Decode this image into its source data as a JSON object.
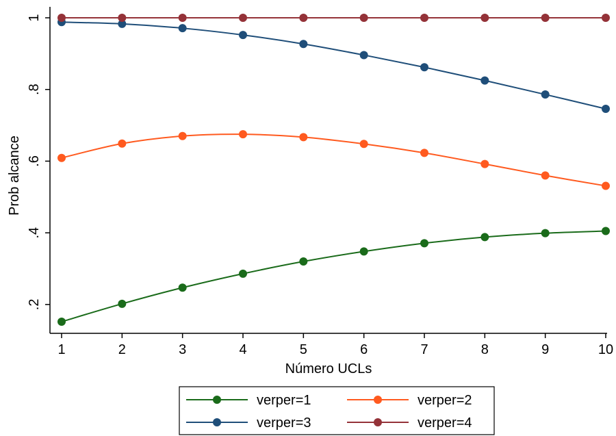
{
  "chart_data": {
    "type": "line",
    "x": [
      1,
      2,
      3,
      4,
      5,
      6,
      7,
      8,
      9,
      10
    ],
    "series": [
      {
        "name": "verper=1",
        "color": "#1a6b1a",
        "values": [
          0.152,
          0.202,
          0.247,
          0.286,
          0.32,
          0.348,
          0.371,
          0.388,
          0.399,
          0.405
        ]
      },
      {
        "name": "verper=2",
        "color": "#ff5a1f",
        "values": [
          0.609,
          0.649,
          0.67,
          0.675,
          0.667,
          0.648,
          0.623,
          0.592,
          0.56,
          0.531
        ]
      },
      {
        "name": "verper=3",
        "color": "#1f4e79",
        "values": [
          0.988,
          0.983,
          0.971,
          0.952,
          0.927,
          0.896,
          0.862,
          0.825,
          0.786,
          0.746
        ]
      },
      {
        "name": "verper=4",
        "color": "#943238",
        "values": [
          1.0,
          1.0,
          1.0,
          1.0,
          1.0,
          1.0,
          1.0,
          1.0,
          1.0,
          1.0
        ]
      }
    ],
    "xlabel": "Número UCLs",
    "ylabel": "Prob alcance",
    "xticks": [
      1,
      2,
      3,
      4,
      5,
      6,
      7,
      8,
      9,
      10
    ],
    "xtick_labels": [
      "1",
      "2",
      "3",
      "4",
      "5",
      "6",
      "7",
      "8",
      "9",
      "10"
    ],
    "yticks": [
      0.2,
      0.4,
      0.6,
      0.8,
      1.0
    ],
    "ytick_labels": [
      ".2",
      ".4",
      ".6",
      ".8",
      "1"
    ],
    "xlim": [
      1,
      10
    ],
    "ylim": [
      0.152,
      1.0
    ],
    "grid": false,
    "legend_position": "bottom"
  }
}
